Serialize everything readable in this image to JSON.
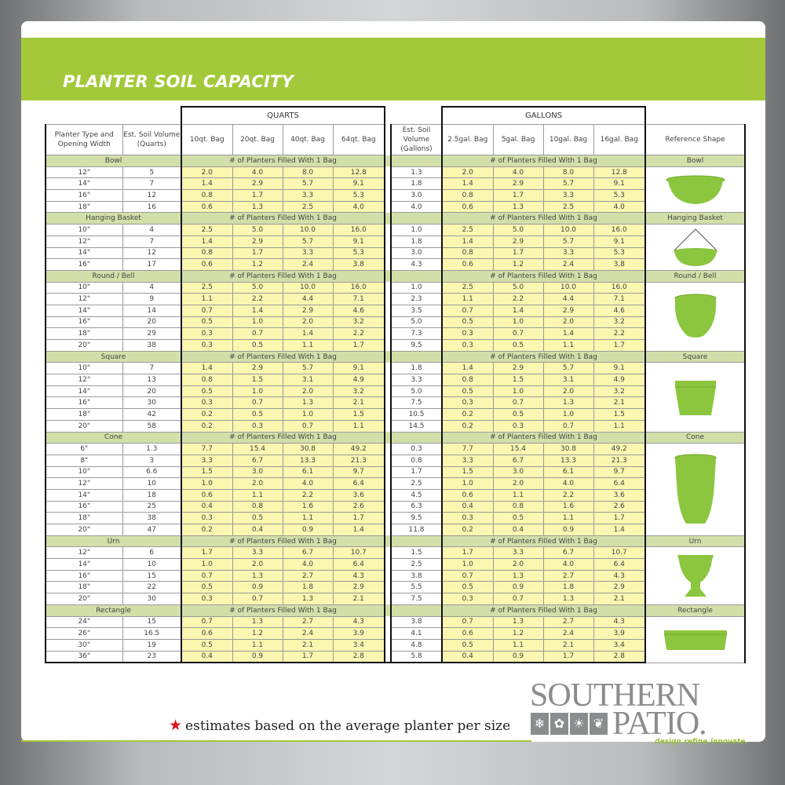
{
  "title": "PLANTER SOIL CAPACITY",
  "units": {
    "quarts": "QUARTS",
    "gallons": "GALLONS"
  },
  "columns": {
    "type": "Planter Type and Opening Width",
    "qt_volume": "Est. Soil Volume (Quarts)",
    "qt_bags": [
      "10qt. Bag",
      "20qt. Bag",
      "40qt. Bag",
      "64qt. Bag"
    ],
    "gal_volume": "Est. Soil Volume (Gallons)",
    "gal_bags": [
      "2.5gal. Bag",
      "5gal. Bag",
      "10gal. Bag",
      "16gal. Bag"
    ],
    "reference": "Reference Shape"
  },
  "section_label": "# of Planters Filled With 1 Bag",
  "accent_color": "#a3c93a",
  "shape_color": "#8cc63f",
  "sections": [
    {
      "name": "Bowl",
      "shape": "bowl",
      "rows": [
        {
          "width": "12\"",
          "qt": "5",
          "gal": "1.3",
          "counts": [
            "2.0",
            "4.0",
            "8.0",
            "12.8"
          ]
        },
        {
          "width": "14\"",
          "qt": "7",
          "gal": "1.8",
          "counts": [
            "1.4",
            "2.9",
            "5.7",
            "9.1"
          ]
        },
        {
          "width": "16\"",
          "qt": "12",
          "gal": "3.0",
          "counts": [
            "0.8",
            "1.7",
            "3.3",
            "5.3"
          ]
        },
        {
          "width": "18\"",
          "qt": "16",
          "gal": "4.0",
          "counts": [
            "0.6",
            "1.3",
            "2.5",
            "4.0"
          ]
        }
      ]
    },
    {
      "name": "Hanging Basket",
      "shape": "hanging-basket",
      "rows": [
        {
          "width": "10\"",
          "qt": "4",
          "gal": "1.0",
          "counts": [
            "2.5",
            "5.0",
            "10.0",
            "16.0"
          ]
        },
        {
          "width": "12\"",
          "qt": "7",
          "gal": "1.8",
          "counts": [
            "1.4",
            "2.9",
            "5.7",
            "9.1"
          ]
        },
        {
          "width": "14\"",
          "qt": "12",
          "gal": "3.0",
          "counts": [
            "0.8",
            "1.7",
            "3.3",
            "5.3"
          ]
        },
        {
          "width": "16\"",
          "qt": "17",
          "gal": "4.3",
          "counts": [
            "0.6",
            "1.2",
            "2.4",
            "3.8"
          ]
        }
      ]
    },
    {
      "name": "Round / Bell",
      "shape": "round-bell",
      "rows": [
        {
          "width": "10\"",
          "qt": "4",
          "gal": "1.0",
          "counts": [
            "2.5",
            "5.0",
            "10.0",
            "16.0"
          ]
        },
        {
          "width": "12\"",
          "qt": "9",
          "gal": "2.3",
          "counts": [
            "1.1",
            "2.2",
            "4.4",
            "7.1"
          ]
        },
        {
          "width": "14\"",
          "qt": "14",
          "gal": "3.5",
          "counts": [
            "0.7",
            "1.4",
            "2.9",
            "4.6"
          ]
        },
        {
          "width": "16\"",
          "qt": "20",
          "gal": "5.0",
          "counts": [
            "0.5",
            "1.0",
            "2.0",
            "3.2"
          ]
        },
        {
          "width": "18\"",
          "qt": "29",
          "gal": "7.3",
          "counts": [
            "0.3",
            "0.7",
            "1.4",
            "2.2"
          ]
        },
        {
          "width": "20\"",
          "qt": "38",
          "gal": "9.5",
          "counts": [
            "0.3",
            "0.5",
            "1.1",
            "1.7"
          ]
        }
      ]
    },
    {
      "name": "Square",
      "shape": "square",
      "rows": [
        {
          "width": "10\"",
          "qt": "7",
          "gal": "1.8",
          "counts": [
            "1.4",
            "2.9",
            "5.7",
            "9.1"
          ]
        },
        {
          "width": "12\"",
          "qt": "13",
          "gal": "3.3",
          "counts": [
            "0.8",
            "1.5",
            "3.1",
            "4.9"
          ]
        },
        {
          "width": "14\"",
          "qt": "20",
          "gal": "5.0",
          "counts": [
            "0.5",
            "1.0",
            "2.0",
            "3.2"
          ]
        },
        {
          "width": "16\"",
          "qt": "30",
          "gal": "7.5",
          "counts": [
            "0.3",
            "0.7",
            "1.3",
            "2.1"
          ]
        },
        {
          "width": "18\"",
          "qt": "42",
          "gal": "10.5",
          "counts": [
            "0.2",
            "0.5",
            "1.0",
            "1.5"
          ]
        },
        {
          "width": "20\"",
          "qt": "58",
          "gal": "14.5",
          "counts": [
            "0.2",
            "0.3",
            "0.7",
            "1.1"
          ]
        }
      ]
    },
    {
      "name": "Cone",
      "shape": "cone",
      "rows": [
        {
          "width": "6\"",
          "qt": "1.3",
          "gal": "0.3",
          "counts": [
            "7.7",
            "15.4",
            "30.8",
            "49.2"
          ]
        },
        {
          "width": "8\"",
          "qt": "3",
          "gal": "0.8",
          "counts": [
            "3.3",
            "6.7",
            "13.3",
            "21.3"
          ]
        },
        {
          "width": "10\"",
          "qt": "6.6",
          "gal": "1.7",
          "counts": [
            "1.5",
            "3.0",
            "6.1",
            "9.7"
          ]
        },
        {
          "width": "12\"",
          "qt": "10",
          "gal": "2.5",
          "counts": [
            "1.0",
            "2.0",
            "4.0",
            "6.4"
          ]
        },
        {
          "width": "14\"",
          "qt": "18",
          "gal": "4.5",
          "counts": [
            "0.6",
            "1.1",
            "2.2",
            "3.6"
          ]
        },
        {
          "width": "16\"",
          "qt": "25",
          "gal": "6.3",
          "counts": [
            "0.4",
            "0.8",
            "1.6",
            "2.6"
          ]
        },
        {
          "width": "18\"",
          "qt": "38",
          "gal": "9.5",
          "counts": [
            "0.3",
            "0.5",
            "1.1",
            "1.7"
          ]
        },
        {
          "width": "20\"",
          "qt": "47",
          "gal": "11.8",
          "counts": [
            "0.2",
            "0.4",
            "0.9",
            "1.4"
          ]
        }
      ]
    },
    {
      "name": "Urn",
      "shape": "urn",
      "rows": [
        {
          "width": "12\"",
          "qt": "6",
          "gal": "1.5",
          "counts": [
            "1.7",
            "3.3",
            "6.7",
            "10.7"
          ]
        },
        {
          "width": "14\"",
          "qt": "10",
          "gal": "2.5",
          "counts": [
            "1.0",
            "2.0",
            "4.0",
            "6.4"
          ]
        },
        {
          "width": "16\"",
          "qt": "15",
          "gal": "3.8",
          "counts": [
            "0.7",
            "1.3",
            "2.7",
            "4.3"
          ]
        },
        {
          "width": "18\"",
          "qt": "22",
          "gal": "5.5",
          "counts": [
            "0.5",
            "0.9",
            "1.8",
            "2.9"
          ]
        },
        {
          "width": "20\"",
          "qt": "30",
          "gal": "7.5",
          "counts": [
            "0.3",
            "0.7",
            "1.3",
            "2.1"
          ]
        }
      ]
    },
    {
      "name": "Rectangle",
      "shape": "rectangle",
      "rows": [
        {
          "width": "24\"",
          "qt": "15",
          "gal": "3.8",
          "counts": [
            "0.7",
            "1.3",
            "2.7",
            "4.3"
          ]
        },
        {
          "width": "26\"",
          "qt": "16.5",
          "gal": "4.1",
          "counts": [
            "0.6",
            "1.2",
            "2.4",
            "3.9"
          ]
        },
        {
          "width": "30\"",
          "qt": "19",
          "gal": "4.8",
          "counts": [
            "0.5",
            "1.1",
            "2.1",
            "3.4"
          ]
        },
        {
          "width": "36\"",
          "qt": "23",
          "gal": "5.8",
          "counts": [
            "0.4",
            "0.9",
            "1.7",
            "2.8"
          ]
        }
      ]
    }
  ],
  "footnote": "estimates based on the average planter per size",
  "footnote_icon": "star-icon",
  "logo": {
    "line1": "SOUTHERN",
    "line2": "PATIO.",
    "tagline": "design.refine.innovate."
  }
}
